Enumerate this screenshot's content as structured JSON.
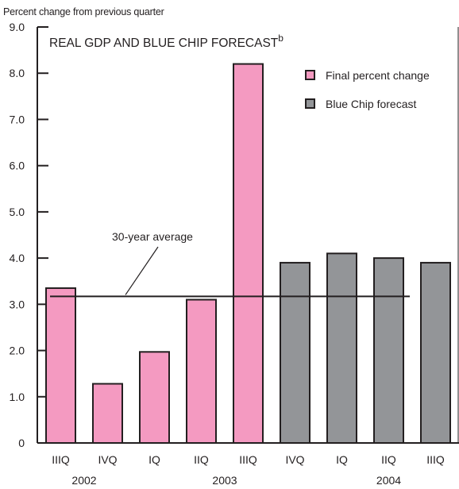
{
  "chart_data": {
    "type": "bar",
    "title": "REAL GDP AND BLUE CHIP FORECAST",
    "title_superscript": "b",
    "ylabel": "Percent change from previous quarter",
    "ylim": [
      0,
      9
    ],
    "yticks": [
      "0",
      "1.0",
      "2.0",
      "3.0",
      "4.0",
      "5.0",
      "6.0",
      "7.0",
      "8.0",
      "9.0"
    ],
    "categories": [
      "IIIQ",
      "IVQ",
      "IQ",
      "IIQ",
      "IIIQ",
      "IVQ",
      "IQ",
      "IIQ",
      "IIIQ"
    ],
    "years": [
      {
        "label": "2002",
        "first": 0,
        "last": 1
      },
      {
        "label": "2003",
        "first": 2,
        "last": 5
      },
      {
        "label": "2004",
        "first": 6,
        "last": 8
      }
    ],
    "series": [
      {
        "name": "Final percent change",
        "color": "#f49ac1",
        "values": [
          3.35,
          1.28,
          1.97,
          3.1,
          8.2,
          null,
          null,
          null,
          null
        ]
      },
      {
        "name": "Blue Chip forecast",
        "color": "#939598",
        "values": [
          null,
          null,
          null,
          null,
          null,
          3.9,
          4.1,
          4.0,
          3.9
        ]
      }
    ],
    "reference_line": {
      "label": "30-year average",
      "value": 3.17
    },
    "legend_position": "top-right",
    "grid": false
  }
}
